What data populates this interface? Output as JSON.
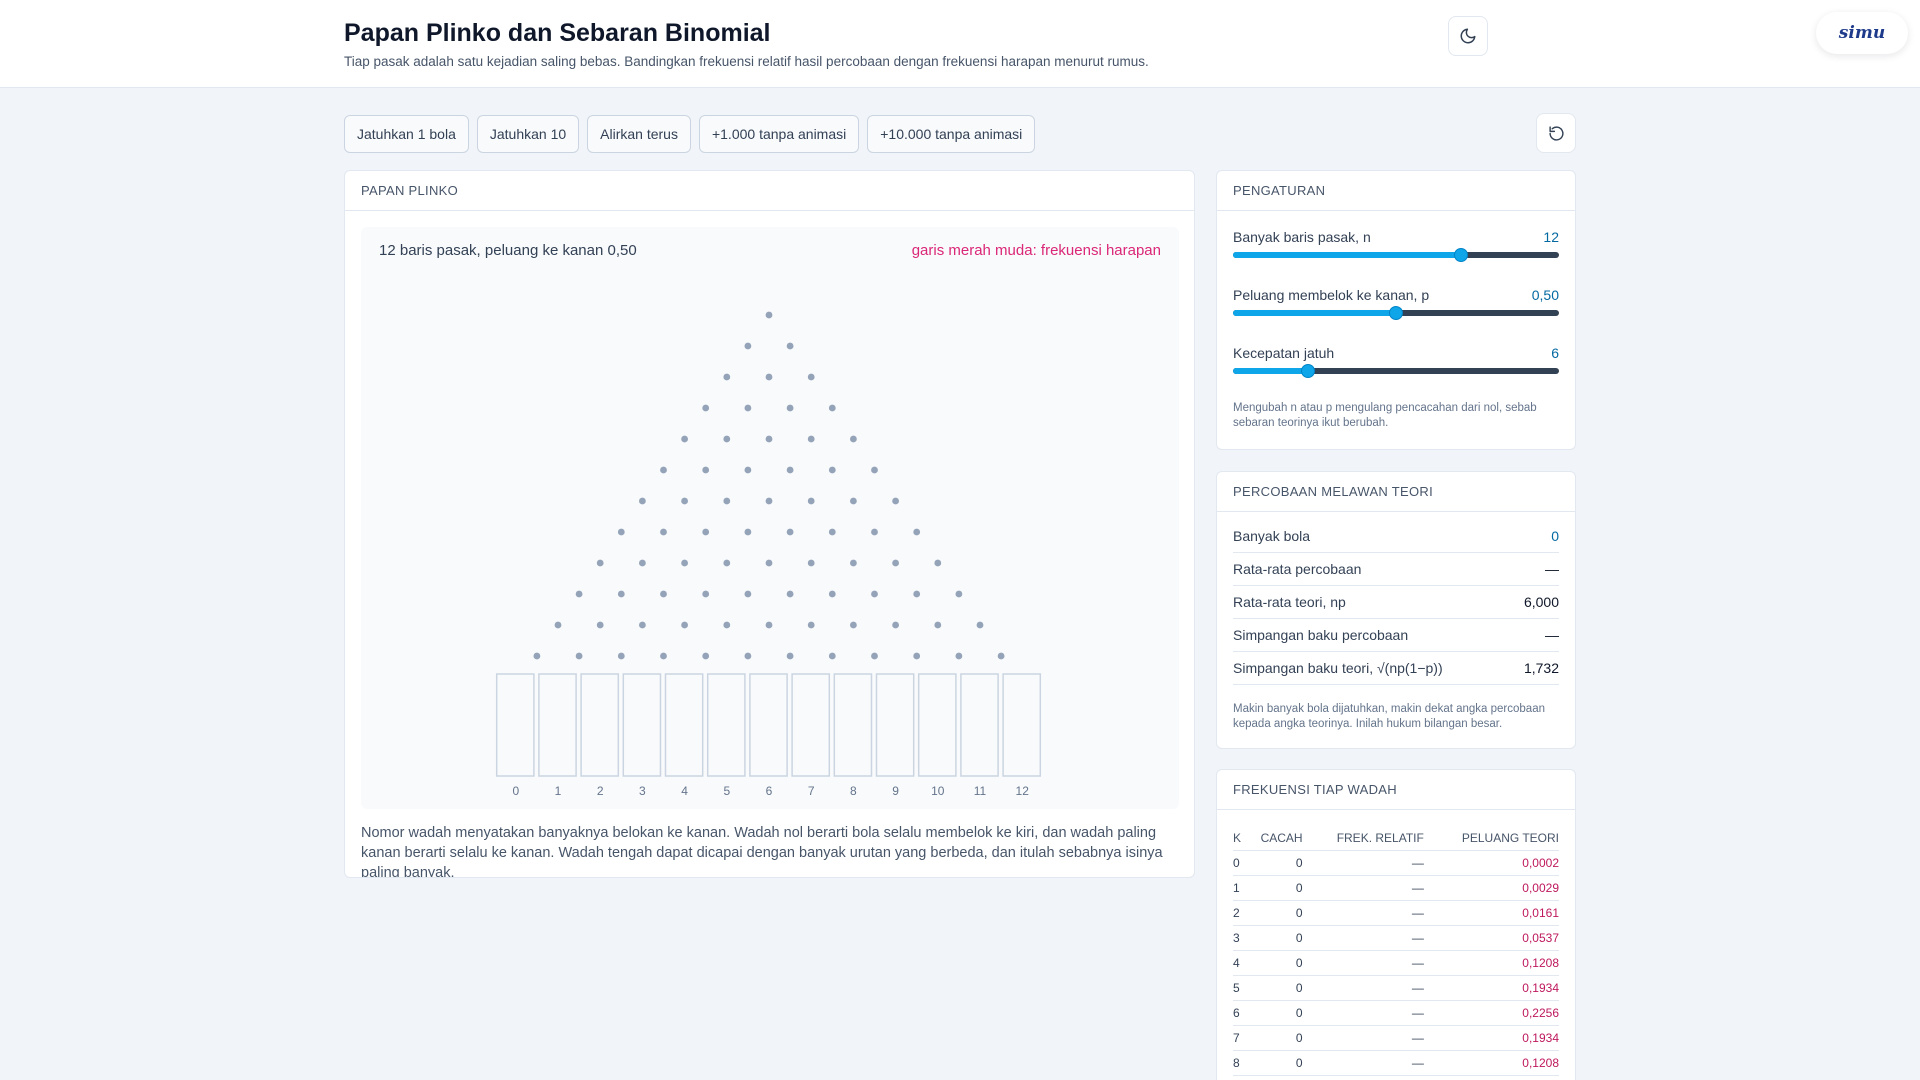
{
  "header": {
    "title": "Papan Plinko dan Sebaran Binomial",
    "subtitle": "Tiap pasak adalah satu kejadian saling bebas. Bandingkan frekuensi relatif hasil percobaan dengan frekuensi harapan menurut rumus.",
    "theme_icon": "moon-icon",
    "brand": "simu"
  },
  "toolbar": {
    "buttons": [
      "Jatuhkan 1 bola",
      "Jatuhkan 10",
      "Alirkan terus",
      "+1.000 tanpa animasi",
      "+10.000 tanpa animasi"
    ],
    "reset_icon": "reset-icon"
  },
  "board": {
    "header": "PAPAN PLINKO",
    "info_left": "12 baris pasak, peluang ke kanan 0,50",
    "info_right": "garis merah muda: frekuensi harapan",
    "rows": 12,
    "bins": [
      "0",
      "1",
      "2",
      "3",
      "4",
      "5",
      "6",
      "7",
      "8",
      "9",
      "10",
      "11",
      "12"
    ],
    "note": "Nomor wadah menyatakan banyaknya belokan ke kanan. Wadah nol berarti bola selalu membelok ke kiri, dan wadah paling kanan berarti selalu ke kanan. Wadah tengah dapat dicapai dengan banyak urutan yang berbeda, dan itulah sebabnya isinya paling banyak.",
    "colors": {
      "peg": "#94a3b8",
      "bin_border": "#cbd5e1",
      "expected": "#db2777"
    }
  },
  "settings": {
    "header": "PENGATURAN",
    "rows": [
      {
        "label": "Banyak baris pasak, n",
        "value": "12",
        "fraction": 0.7
      },
      {
        "label": "Peluang membelok ke kanan, p",
        "value": "0,50",
        "fraction": 0.5
      },
      {
        "label": "Kecepatan jatuh",
        "value": "6",
        "fraction": 0.23
      }
    ],
    "note": "Mengubah n atau p mengulang pencacahan dari nol, sebab sebaran teorinya ikut berubah."
  },
  "compare": {
    "header": "PERCOBAAN MELAWAN TEORI",
    "rows": [
      {
        "label": "Banyak bola",
        "value": "0"
      },
      {
        "label": "Rata-rata percobaan",
        "value": "—"
      },
      {
        "label": "Rata-rata teori, np",
        "value": "6,000"
      },
      {
        "label": "Simpangan baku percobaan",
        "value": "—"
      },
      {
        "label": "Simpangan baku teori, √(np(1−p))",
        "value": "1,732"
      }
    ],
    "note": "Makin banyak bola dijatuhkan, makin dekat angka percobaan kepada angka teorinya. Inilah hukum bilangan besar."
  },
  "frequency": {
    "header": "FREKUENSI TIAP WADAH",
    "columns": [
      "K",
      "CACAH",
      "FREK. RELATIF",
      "PELUANG TEORI"
    ],
    "rows": [
      {
        "k": "0",
        "count": "0",
        "rel": "—",
        "theory": "0,0002"
      },
      {
        "k": "1",
        "count": "0",
        "rel": "—",
        "theory": "0,0029"
      },
      {
        "k": "2",
        "count": "0",
        "rel": "—",
        "theory": "0,0161"
      },
      {
        "k": "3",
        "count": "0",
        "rel": "—",
        "theory": "0,0537"
      },
      {
        "k": "4",
        "count": "0",
        "rel": "—",
        "theory": "0,1208"
      },
      {
        "k": "5",
        "count": "0",
        "rel": "—",
        "theory": "0,1934"
      },
      {
        "k": "6",
        "count": "0",
        "rel": "—",
        "theory": "0,2256"
      },
      {
        "k": "7",
        "count": "0",
        "rel": "—",
        "theory": "0,1934"
      },
      {
        "k": "8",
        "count": "0",
        "rel": "—",
        "theory": "0,1208"
      }
    ]
  }
}
